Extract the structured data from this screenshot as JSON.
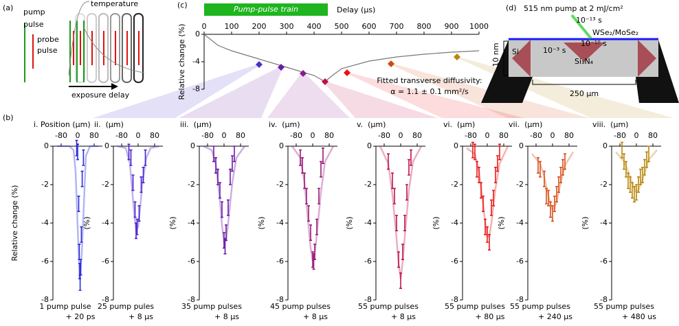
{
  "labels": {
    "a": "(a)",
    "b": "(b)",
    "c": "(c)",
    "d": "(d)"
  },
  "panel_a": {
    "pump_pulse": [
      "pump",
      "pulse"
    ],
    "probe_pulse": [
      "probe",
      "pulse"
    ],
    "temperature": "temperature",
    "exposure_delay": "exposure delay"
  },
  "panel_d": {
    "title": "515 nm pump at 2 mJ/cm²",
    "t_fast": "10⁻¹³ s",
    "layers": "WSe₂/MoSe₂",
    "t_mid": "10⁻¹⁰ s",
    "t_slow": "10⁻³ s",
    "si": "Si",
    "sin": "Si₃N₄",
    "thickness": "10 nm",
    "width": "250 µm"
  },
  "chart_data": [
    {
      "type": "scatter",
      "x": [
        200,
        280,
        360,
        440,
        520,
        680,
        920
      ],
      "values": [
        -4.4,
        -4.8,
        -5.7,
        -6.9,
        -5.6,
        -4.3,
        -3.3
      ],
      "colors": [
        "#4b2fd0",
        "#6a1aa8",
        "#8a1a8a",
        "#c0104a",
        "#ee1111",
        "#d04a10",
        "#b8860b"
      ],
      "fit": {
        "x": [
          0,
          50,
          100,
          200,
          300,
          400,
          440,
          460,
          500,
          600,
          700,
          800,
          900,
          1000
        ],
        "values": [
          0,
          -1.6,
          -2.4,
          -3.6,
          -4.8,
          -6.0,
          -6.9,
          -6.2,
          -5.0,
          -3.9,
          -3.3,
          -2.9,
          -2.6,
          -2.4
        ]
      },
      "xlim": [
        0,
        1000
      ],
      "xticks": [
        0,
        100,
        200,
        300,
        400,
        500,
        600,
        700,
        800,
        900,
        1000
      ],
      "ylim": [
        -8,
        0
      ],
      "yticks": [
        0,
        -4,
        -8
      ],
      "x_label": "Delay (µs)",
      "y_label": "Relative change (%)",
      "banner": "Pump-pulse train",
      "banner_range": [
        0,
        450
      ],
      "annotation": [
        "Fitted transverse diffusivity:",
        "α = 1.1 ± 0.1 mm²/s"
      ]
    },
    {
      "type": "errorbar",
      "label": "i. Position (µm)",
      "y_label": "Relative change (%)",
      "caption": [
        "1 pump pulse",
        "+ 20 ps"
      ],
      "color": "#2b2bd9",
      "x": [
        -5,
        0,
        5,
        8,
        10,
        12,
        15,
        18,
        22,
        28
      ],
      "values": [
        -0.1,
        -0.3,
        -3.0,
        -5.5,
        -6.5,
        -7.1,
        -6.3,
        -4.6,
        -1.7,
        -0.6
      ],
      "error": 0.4,
      "fit": {
        "x": [
          -100,
          -60,
          -40,
          -20,
          -10,
          0,
          10,
          20,
          40,
          60,
          100
        ],
        "values": [
          0,
          0,
          0,
          -0.2,
          -1.3,
          -4.2,
          -6.9,
          -5.6,
          -0.5,
          0,
          0
        ]
      },
      "xlim": [
        -120,
        120
      ],
      "xticks": [
        -80,
        0,
        80
      ],
      "ylim": [
        -8,
        0
      ],
      "yticks": [
        0,
        -2,
        -4,
        -6,
        -8
      ]
    },
    {
      "type": "errorbar",
      "label": "ii.  (µm)",
      "y_label": "(%)",
      "caption": [
        "25 pump pules",
        "+ 8 µs"
      ],
      "color": "#4a22c8",
      "x": [
        -45,
        -35,
        -25,
        -15,
        -10,
        -5,
        5,
        15,
        25,
        35
      ],
      "values": [
        -0.3,
        -0.6,
        -1.9,
        -3.3,
        -4.4,
        -4.2,
        -3.5,
        -2.0,
        -1.5,
        -0.6
      ],
      "error": 0.4,
      "fit": {
        "x": [
          -100,
          -60,
          -40,
          -20,
          -10,
          0,
          10,
          20,
          40,
          60,
          100
        ],
        "values": [
          0,
          -0.1,
          -0.9,
          -3.4,
          -4.4,
          -4.2,
          -3.2,
          -2.0,
          -0.6,
          -0.1,
          0
        ]
      },
      "xlim": [
        -120,
        120
      ],
      "xticks": [
        -80,
        0,
        80
      ],
      "ylim": [
        -8,
        0
      ],
      "yticks": [
        0,
        -2,
        -4,
        -6,
        -8
      ]
    },
    {
      "type": "errorbar",
      "label": "iii.  (µm)",
      "y_label": "(%)",
      "caption": [
        "35 pump pulses",
        "+ 8 µs"
      ],
      "color": "#6b1aa6",
      "x": [
        -50,
        -40,
        -30,
        -20,
        -10,
        0,
        5,
        10,
        20,
        30,
        40,
        50
      ],
      "values": [
        -0.4,
        -1.0,
        -1.6,
        -2.3,
        -3.3,
        -4.9,
        -5.2,
        -4.5,
        -3.2,
        -1.6,
        -0.9,
        -0.4
      ],
      "error": 0.4,
      "fit": {
        "x": [
          -100,
          -60,
          -40,
          -20,
          -10,
          0,
          10,
          20,
          40,
          60,
          100
        ],
        "values": [
          0,
          -0.2,
          -0.9,
          -2.8,
          -4.1,
          -5.0,
          -4.9,
          -4.0,
          -1.9,
          -0.6,
          0
        ]
      },
      "xlim": [
        -120,
        120
      ],
      "xticks": [
        -80,
        0,
        80
      ],
      "ylim": [
        -8,
        0
      ],
      "yticks": [
        0,
        -2,
        -4,
        -6,
        -8
      ]
    },
    {
      "type": "errorbar",
      "label": "iv.  (µm)",
      "y_label": "(%)",
      "caption": [
        "45 pump pulses",
        "+ 8 µs"
      ],
      "color": "#9b1a7a",
      "x": [
        -60,
        -50,
        -40,
        -30,
        -20,
        -10,
        0,
        5,
        10,
        20,
        30,
        40,
        50
      ],
      "values": [
        -0.6,
        -1.0,
        -1.8,
        -2.6,
        -3.5,
        -4.5,
        -5.9,
        -6.0,
        -5.5,
        -4.2,
        -2.6,
        -1.2,
        -0.5
      ],
      "error": 0.4,
      "fit": {
        "x": [
          -100,
          -60,
          -40,
          -20,
          -10,
          0,
          10,
          20,
          40,
          60,
          100
        ],
        "values": [
          0,
          -0.6,
          -1.9,
          -4.2,
          -5.3,
          -6.0,
          -5.6,
          -4.6,
          -2.4,
          -0.8,
          0
        ]
      },
      "xlim": [
        -120,
        120
      ],
      "xticks": [
        -80,
        0,
        80
      ],
      "ylim": [
        -8,
        0
      ],
      "yticks": [
        0,
        -2,
        -4,
        -6,
        -8
      ]
    },
    {
      "type": "errorbar",
      "label": "v.  (µm)",
      "y_label": "(%)",
      "caption": [
        "55 pump pulses",
        "+ 8 µs"
      ],
      "color": "#c0144e",
      "x": [
        -60,
        -40,
        -30,
        -20,
        -10,
        0,
        10,
        20,
        30,
        40,
        50
      ],
      "values": [
        -0.8,
        -1.8,
        -2.6,
        -4.0,
        -5.9,
        -7.0,
        -5.5,
        -4.0,
        -2.4,
        -1.1,
        -0.6
      ],
      "error": 0.4,
      "fit": {
        "x": [
          -100,
          -60,
          -40,
          -20,
          -10,
          0,
          10,
          20,
          40,
          60,
          100
        ],
        "values": [
          0,
          -0.9,
          -2.5,
          -4.8,
          -6.1,
          -6.9,
          -6.0,
          -4.7,
          -2.3,
          -0.8,
          0
        ]
      },
      "xlim": [
        -120,
        120
      ],
      "xticks": [
        -80,
        0,
        80
      ],
      "ylim": [
        -8,
        0
      ],
      "yticks": [
        0,
        -2,
        -4,
        -6,
        -8
      ]
    },
    {
      "type": "errorbar",
      "label": "vi.  (µm)",
      "y_label": "(%)",
      "caption": [
        "55 pump pulses",
        "+ 80 µs"
      ],
      "color": "#e81a1a",
      "x": [
        -70,
        -60,
        -50,
        -40,
        -30,
        -20,
        -10,
        0,
        10,
        20,
        30,
        40,
        50,
        60
      ],
      "values": [
        -0.2,
        -0.3,
        -1.2,
        -1.5,
        -2.3,
        -3.0,
        -4.2,
        -4.6,
        -5.0,
        -3.2,
        -2.7,
        -1.5,
        -0.9,
        -0.3
      ],
      "error": 0.4,
      "fit": {
        "x": [
          -100,
          -60,
          -40,
          -20,
          -10,
          0,
          10,
          20,
          40,
          60,
          100
        ],
        "values": [
          -0.1,
          -0.4,
          -1.3,
          -3.0,
          -4.0,
          -4.7,
          -4.7,
          -4.0,
          -2.2,
          -0.9,
          0
        ]
      },
      "xlim": [
        -120,
        120
      ],
      "xticks": [
        -80,
        0,
        80
      ],
      "ylim": [
        -8,
        0
      ],
      "yticks": [
        0,
        -2,
        -4,
        -6,
        -8
      ]
    },
    {
      "type": "errorbar",
      "label": "vii.  (µm)",
      "y_label": "(%)",
      "caption": [
        "55 pump pulses",
        "+ 240 µs"
      ],
      "color": "#d8501a",
      "x": [
        -70,
        -60,
        -40,
        -30,
        -20,
        -10,
        0,
        10,
        20,
        30,
        40,
        50,
        60
      ],
      "values": [
        -1.0,
        -1.2,
        -1.7,
        -2.6,
        -2.7,
        -3.3,
        -3.5,
        -3.0,
        -2.5,
        -2.0,
        -1.5,
        -1.1,
        -0.8
      ],
      "error": 0.4,
      "fit": {
        "x": [
          -100,
          -60,
          -40,
          -20,
          -10,
          0,
          10,
          20,
          40,
          60,
          100
        ],
        "values": [
          -0.4,
          -0.9,
          -1.6,
          -2.6,
          -3.0,
          -3.3,
          -3.2,
          -2.9,
          -1.9,
          -1.0,
          -0.3
        ]
      },
      "xlim": [
        -120,
        120
      ],
      "xticks": [
        -80,
        0,
        80
      ],
      "ylim": [
        -8,
        0
      ],
      "yticks": [
        0,
        -2,
        -4,
        -6,
        -8
      ]
    },
    {
      "type": "errorbar",
      "label": "viii.  (µm)",
      "y_label": "(%)",
      "caption": [
        "55 pump pulses",
        "+ 480 us"
      ],
      "color": "#b8860b",
      "x": [
        -70,
        -60,
        -50,
        -40,
        -30,
        -20,
        -10,
        0,
        10,
        20,
        30,
        40,
        50,
        60
      ],
      "values": [
        -0.2,
        -0.8,
        -1.2,
        -1.8,
        -2.0,
        -2.3,
        -2.5,
        -2.4,
        -2.0,
        -1.6,
        -1.5,
        -1.1,
        -0.7,
        -0.4
      ],
      "error": 0.4,
      "fit": {
        "x": [
          -100,
          -60,
          -40,
          -20,
          -10,
          0,
          10,
          20,
          40,
          60,
          100
        ],
        "values": [
          -0.3,
          -0.8,
          -1.3,
          -1.9,
          -2.2,
          -2.4,
          -2.3,
          -2.0,
          -1.4,
          -0.7,
          -0.2
        ]
      },
      "xlim": [
        -120,
        120
      ],
      "xticks": [
        -80,
        0,
        80
      ],
      "ylim": [
        -8,
        0
      ],
      "yticks": [
        0,
        -2,
        -4,
        -6,
        -8
      ]
    }
  ]
}
